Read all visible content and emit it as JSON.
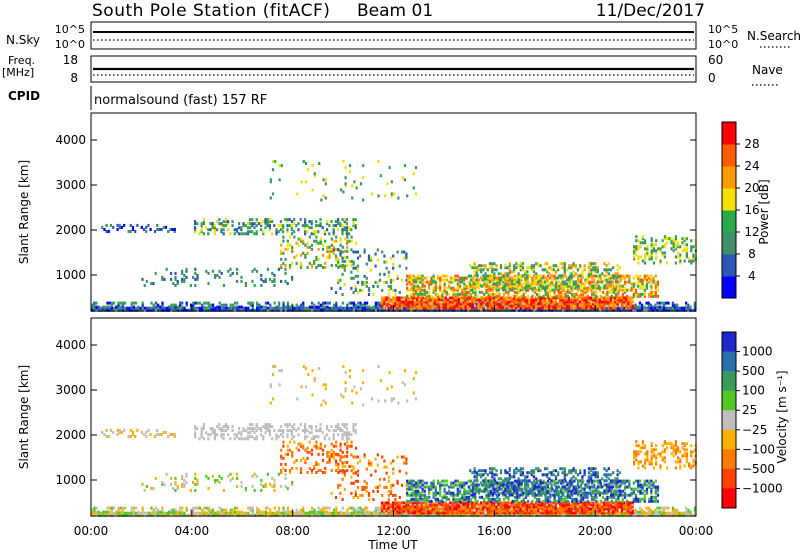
{
  "header": {
    "station": "South Pole Station (fitACF)",
    "beam": "Beam 01",
    "date": "11/Dec/2017"
  },
  "top_panel": {
    "nsky_label": "N.Sky",
    "nsky_ticks": [
      "10^5",
      "10^0"
    ],
    "nsearch_label": "N.Search",
    "nsearch_ticks": [
      "10^5",
      "10^0"
    ],
    "freq_label": "Freq.",
    "freq_unit": "[MHz]",
    "freq_ticks": [
      "18",
      "8"
    ],
    "nave_label": "Nave",
    "nave_ticks": [
      "60",
      "0"
    ],
    "cpid_label": "CPID",
    "cpid_text": "normalsound (fast) 157 RF"
  },
  "chart_data": [
    {
      "type": "heatmap",
      "name": "power",
      "ylabel": "Slant Range [km]",
      "xlabel": "",
      "yticks": [
        "1000",
        "2000",
        "3000",
        "4000"
      ],
      "ylim": [
        200,
        4600
      ],
      "xlim_hours": [
        0,
        24
      ],
      "colorbar_label": "Power [dB]",
      "colorbar_ticks": [
        "4",
        "8",
        "12",
        "16",
        "20",
        "24",
        "28"
      ],
      "colors": [
        "#0000ff",
        "#2a57b5",
        "#3f8f6a",
        "#2aa84a",
        "#f5e000",
        "#ff9a00",
        "#ff5a00",
        "#ff0000"
      ]
    },
    {
      "type": "heatmap",
      "name": "velocity",
      "ylabel": "Slant Range [km]",
      "xlabel": "Time UT",
      "yticks": [
        "1000",
        "2000",
        "3000",
        "4000"
      ],
      "ylim": [
        200,
        4600
      ],
      "xticks": [
        "00:00",
        "04:00",
        "08:00",
        "12:00",
        "16:00",
        "20:00",
        "00:00"
      ],
      "xlim_hours": [
        0,
        24
      ],
      "colorbar_label": "Velocity [m s⁻¹]",
      "colorbar_ticks": [
        "1000",
        "500",
        "100",
        "25",
        "−25",
        "−100",
        "−500",
        "−1000"
      ],
      "colors": [
        "#1e28c8",
        "#2a70b0",
        "#3a9a5a",
        "#50c828",
        "#bebebe",
        "#ffb000",
        "#ff7a00",
        "#ff4000",
        "#ff0000"
      ]
    }
  ]
}
